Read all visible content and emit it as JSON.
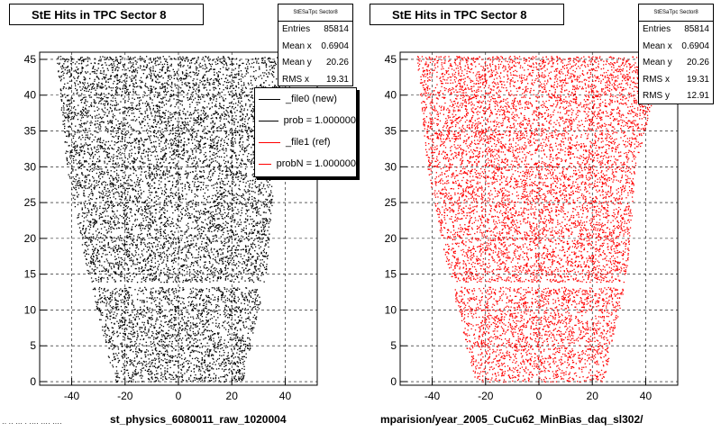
{
  "footer": {
    "text": "·· ·· ··· · ···· ···· ····"
  },
  "pads": [
    {
      "title": "StE Hits in TPC Sector 8",
      "stats": {
        "name": "StESaTpc Sector8",
        "entries_label": "Entries",
        "entries": "85814",
        "meanx_label": "Mean x",
        "meanx": "0.6904",
        "meany_label": "Mean y",
        "meany": "20.26",
        "rmsx_label": "RMS x",
        "rmsx": "19.31"
      },
      "legend": [
        {
          "label": "_file0 (new)",
          "color": "#000000"
        },
        {
          "label": "prob = 1.000000",
          "color": "#000000"
        },
        {
          "label": "_file1 (ref)",
          "color": "#ff0000"
        },
        {
          "label": "probN = 1.000000",
          "color": "#ff0000"
        }
      ],
      "xlabel": "st_physics_6080011_raw_1020004",
      "color": "#000000"
    },
    {
      "title": "StE Hits in TPC Sector 8",
      "stats": {
        "name": "StESaTpc Sector8",
        "entries_label": "Entries",
        "entries": "85814",
        "meanx_label": "Mean x",
        "meanx": "0.6904",
        "meany_label": "Mean y",
        "meany": "20.26",
        "rmsx_label": "RMS x",
        "rmsx": "19.31",
        "rmsy_label": "RMS y",
        "rmsy": "12.91"
      },
      "xlabel": "mparision/year_2005_CuCu62_MinBias_daq_sl302/",
      "color": "#ff0000"
    }
  ],
  "chart_data": [
    {
      "type": "scatter",
      "title": "StE Hits in TPC Sector 8",
      "xlabel": "st_physics_6080011_raw_1020004",
      "ylabel": "",
      "xlim": [
        -52,
        52
      ],
      "ylim": [
        -0.5,
        46
      ],
      "xticks": [
        -40,
        -20,
        0,
        20,
        40
      ],
      "yticks": [
        0,
        5,
        10,
        15,
        20,
        25,
        30,
        35,
        40,
        45
      ],
      "grid": true,
      "legend": "top-right",
      "series": [
        {
          "name": "_file0 (new)",
          "color": "#000000",
          "region": [
            [
              -46,
              45.5
            ],
            [
              47,
              45.5
            ],
            [
              36,
              30
            ],
            [
              33,
              15
            ],
            [
              24,
              0
            ],
            [
              -24,
              0
            ],
            [
              -34,
              15
            ],
            [
              -42,
              30
            ]
          ],
          "gaps_y": [
            13.6
          ]
        }
      ],
      "stats": {
        "entries": 85814,
        "mean_x": 0.6904,
        "mean_y": 20.26,
        "rms_x": 19.31
      }
    },
    {
      "type": "scatter",
      "title": "StE Hits in TPC Sector 8",
      "xlabel": "mparision/year_2005_CuCu62_MinBias_daq_sl302/",
      "ylabel": "",
      "xlim": [
        -52,
        52
      ],
      "ylim": [
        -0.5,
        46
      ],
      "xticks": [
        -40,
        -20,
        0,
        20,
        40
      ],
      "yticks": [
        0,
        5,
        10,
        15,
        20,
        25,
        30,
        35,
        40,
        45
      ],
      "grid": true,
      "series": [
        {
          "name": "_file1 (ref)",
          "color": "#ff0000",
          "region": [
            [
              -46,
              45.5
            ],
            [
              47,
              45.5
            ],
            [
              36,
              30
            ],
            [
              33,
              15
            ],
            [
              24,
              0
            ],
            [
              -24,
              0
            ],
            [
              -34,
              15
            ],
            [
              -42,
              30
            ]
          ],
          "gaps_y": [
            13.6
          ]
        }
      ],
      "stats": {
        "entries": 85814,
        "mean_x": 0.6904,
        "mean_y": 20.26,
        "rms_x": 19.31,
        "rms_y": 12.91
      }
    }
  ]
}
